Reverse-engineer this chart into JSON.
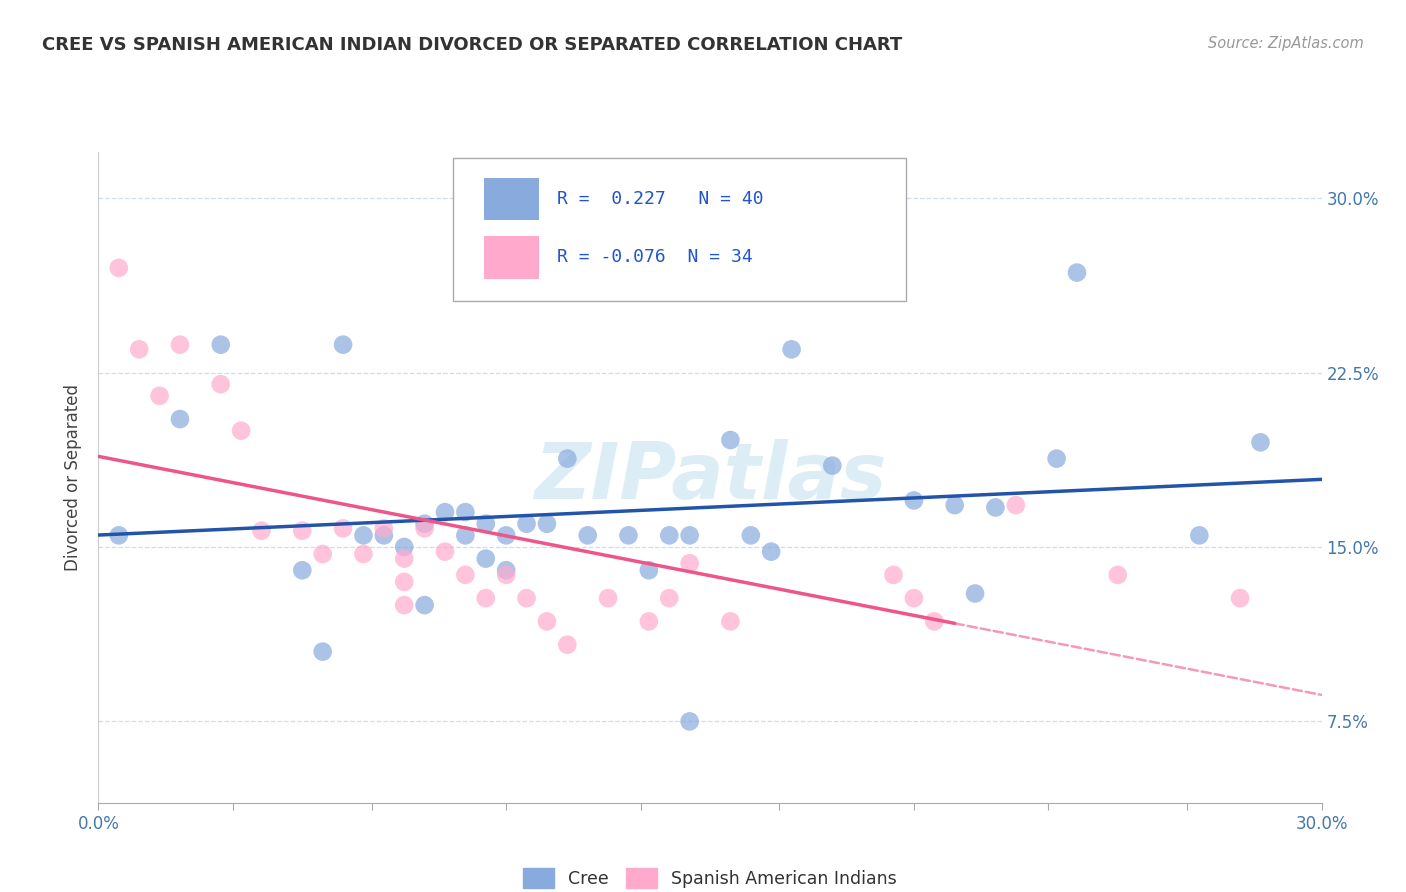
{
  "title": "CREE VS SPANISH AMERICAN INDIAN DIVORCED OR SEPARATED CORRELATION CHART",
  "source": "Source: ZipAtlas.com",
  "ylabel": "Divorced or Separated",
  "xlim": [
    0.0,
    0.3
  ],
  "ylim": [
    0.04,
    0.32
  ],
  "yticks": [
    0.075,
    0.15,
    0.225,
    0.3
  ],
  "ytick_labels": [
    "7.5%",
    "15.0%",
    "22.5%",
    "30.0%"
  ],
  "xticks": [
    0.0,
    0.033,
    0.067,
    0.1,
    0.133,
    0.167,
    0.2,
    0.233,
    0.267,
    0.3
  ],
  "xtick_labels_show": [
    "0.0%",
    "30.0%"
  ],
  "blue_color": "#88AADD",
  "pink_color": "#FFAACC",
  "line_blue": "#2255AA",
  "line_pink": "#EE5588",
  "watermark_color": "#BBDDEE",
  "legend_r1": "R =  0.227",
  "legend_n1": "N = 40",
  "legend_r2": "R = -0.076",
  "legend_n2": "N = 34",
  "legend_label1": "Cree",
  "legend_label2": "Spanish American Indians",
  "cree_x": [
    0.005,
    0.02,
    0.03,
    0.05,
    0.055,
    0.06,
    0.065,
    0.07,
    0.075,
    0.08,
    0.08,
    0.085,
    0.09,
    0.09,
    0.095,
    0.095,
    0.1,
    0.1,
    0.105,
    0.11,
    0.115,
    0.12,
    0.13,
    0.135,
    0.14,
    0.145,
    0.145,
    0.155,
    0.16,
    0.165,
    0.17,
    0.18,
    0.2,
    0.21,
    0.215,
    0.22,
    0.235,
    0.24,
    0.27,
    0.285
  ],
  "cree_y": [
    0.155,
    0.205,
    0.237,
    0.14,
    0.105,
    0.237,
    0.155,
    0.155,
    0.15,
    0.16,
    0.125,
    0.165,
    0.165,
    0.155,
    0.145,
    0.16,
    0.155,
    0.14,
    0.16,
    0.16,
    0.188,
    0.155,
    0.155,
    0.14,
    0.155,
    0.075,
    0.155,
    0.196,
    0.155,
    0.148,
    0.235,
    0.185,
    0.17,
    0.168,
    0.13,
    0.167,
    0.188,
    0.268,
    0.155,
    0.195
  ],
  "spanish_x": [
    0.005,
    0.01,
    0.015,
    0.02,
    0.03,
    0.035,
    0.04,
    0.05,
    0.055,
    0.06,
    0.065,
    0.07,
    0.075,
    0.075,
    0.075,
    0.08,
    0.085,
    0.09,
    0.095,
    0.1,
    0.105,
    0.11,
    0.115,
    0.125,
    0.135,
    0.14,
    0.145,
    0.155,
    0.195,
    0.2,
    0.205,
    0.225,
    0.25,
    0.28
  ],
  "spanish_y": [
    0.27,
    0.235,
    0.215,
    0.237,
    0.22,
    0.2,
    0.157,
    0.157,
    0.147,
    0.158,
    0.147,
    0.158,
    0.145,
    0.135,
    0.125,
    0.158,
    0.148,
    0.138,
    0.128,
    0.138,
    0.128,
    0.118,
    0.108,
    0.128,
    0.118,
    0.128,
    0.143,
    0.118,
    0.138,
    0.128,
    0.118,
    0.168,
    0.138,
    0.128
  ]
}
